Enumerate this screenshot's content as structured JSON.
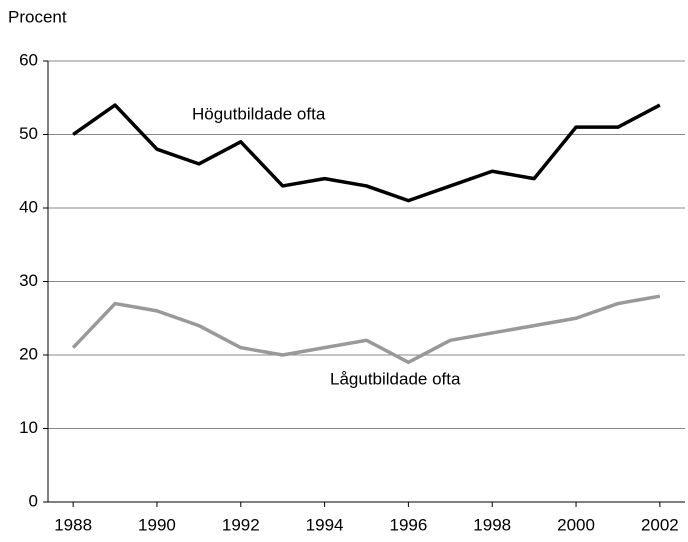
{
  "chart_data": {
    "type": "line",
    "y_label": "Procent",
    "x": [
      1988,
      1989,
      1990,
      1991,
      1992,
      1993,
      1994,
      1995,
      1996,
      1997,
      1998,
      1999,
      2000,
      2001,
      2002
    ],
    "series": [
      {
        "name": "Högutbildade ofta",
        "color": "#000000",
        "values": [
          50,
          54,
          48,
          46,
          49,
          43,
          44,
          43,
          41,
          43,
          45,
          44,
          51,
          51,
          54
        ]
      },
      {
        "name": "Lågutbildade ofta",
        "color": "#999999",
        "values": [
          21,
          27,
          26,
          24,
          21,
          20,
          21,
          22,
          19,
          22,
          23,
          24,
          25,
          27,
          28
        ]
      }
    ],
    "xlim": [
      1987.4,
      2002.6
    ],
    "xticks": [
      1988,
      1990,
      1992,
      1994,
      1996,
      1998,
      2000,
      2002
    ],
    "ylim": [
      0,
      60
    ],
    "yticks": [
      0,
      10,
      20,
      30,
      40,
      50,
      60
    ],
    "grid": true
  }
}
